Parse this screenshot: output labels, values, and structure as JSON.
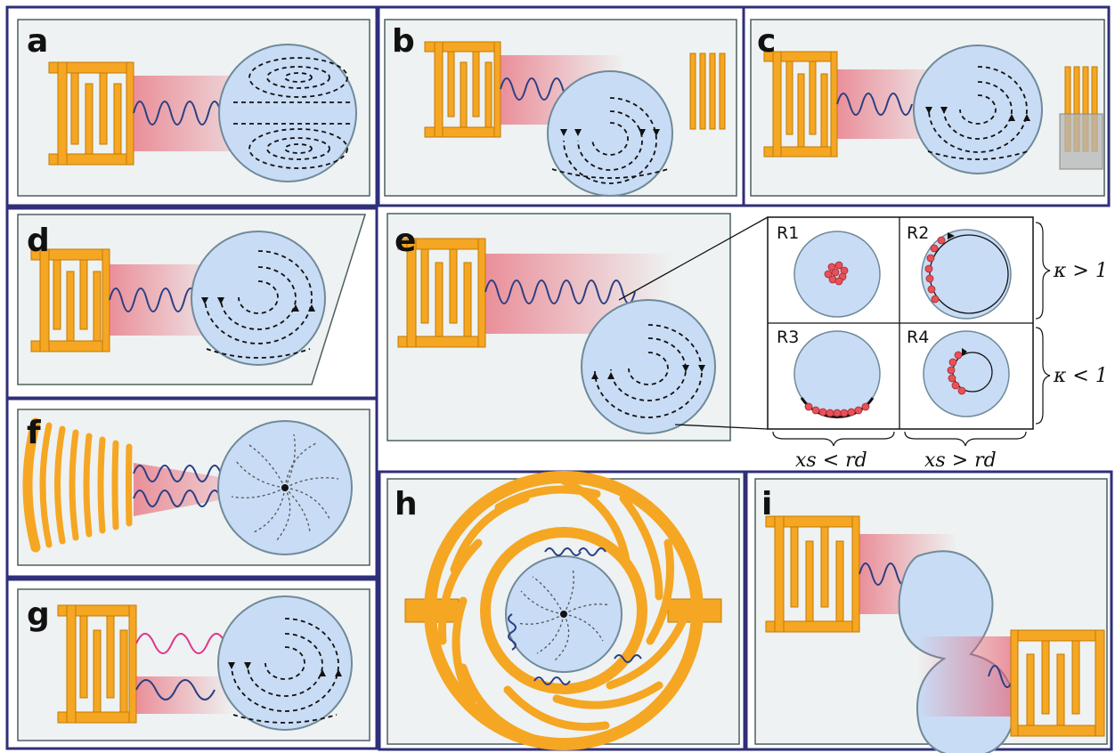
{
  "panels": {
    "a": "a",
    "b": "b",
    "c": "c",
    "d": "d",
    "e": "e",
    "f": "f",
    "g": "g",
    "h": "h",
    "i": "i"
  },
  "regimes": {
    "r1": "R1",
    "r2": "R2",
    "r3": "R3",
    "r4": "R4"
  },
  "conditions": {
    "kappa_gt": "κ > 1",
    "kappa_lt": "κ < 1",
    "xs_lt": "xs < rd",
    "xs_gt": "xs > rd"
  },
  "colors": {
    "idt": "#f5a623",
    "droplet": "#c9dcf5",
    "beam": "#e85a6a",
    "wave": "#2a3f84",
    "wave_pink": "#e0338a",
    "frame": "#2f2f7a",
    "particle": "#e8505a"
  }
}
